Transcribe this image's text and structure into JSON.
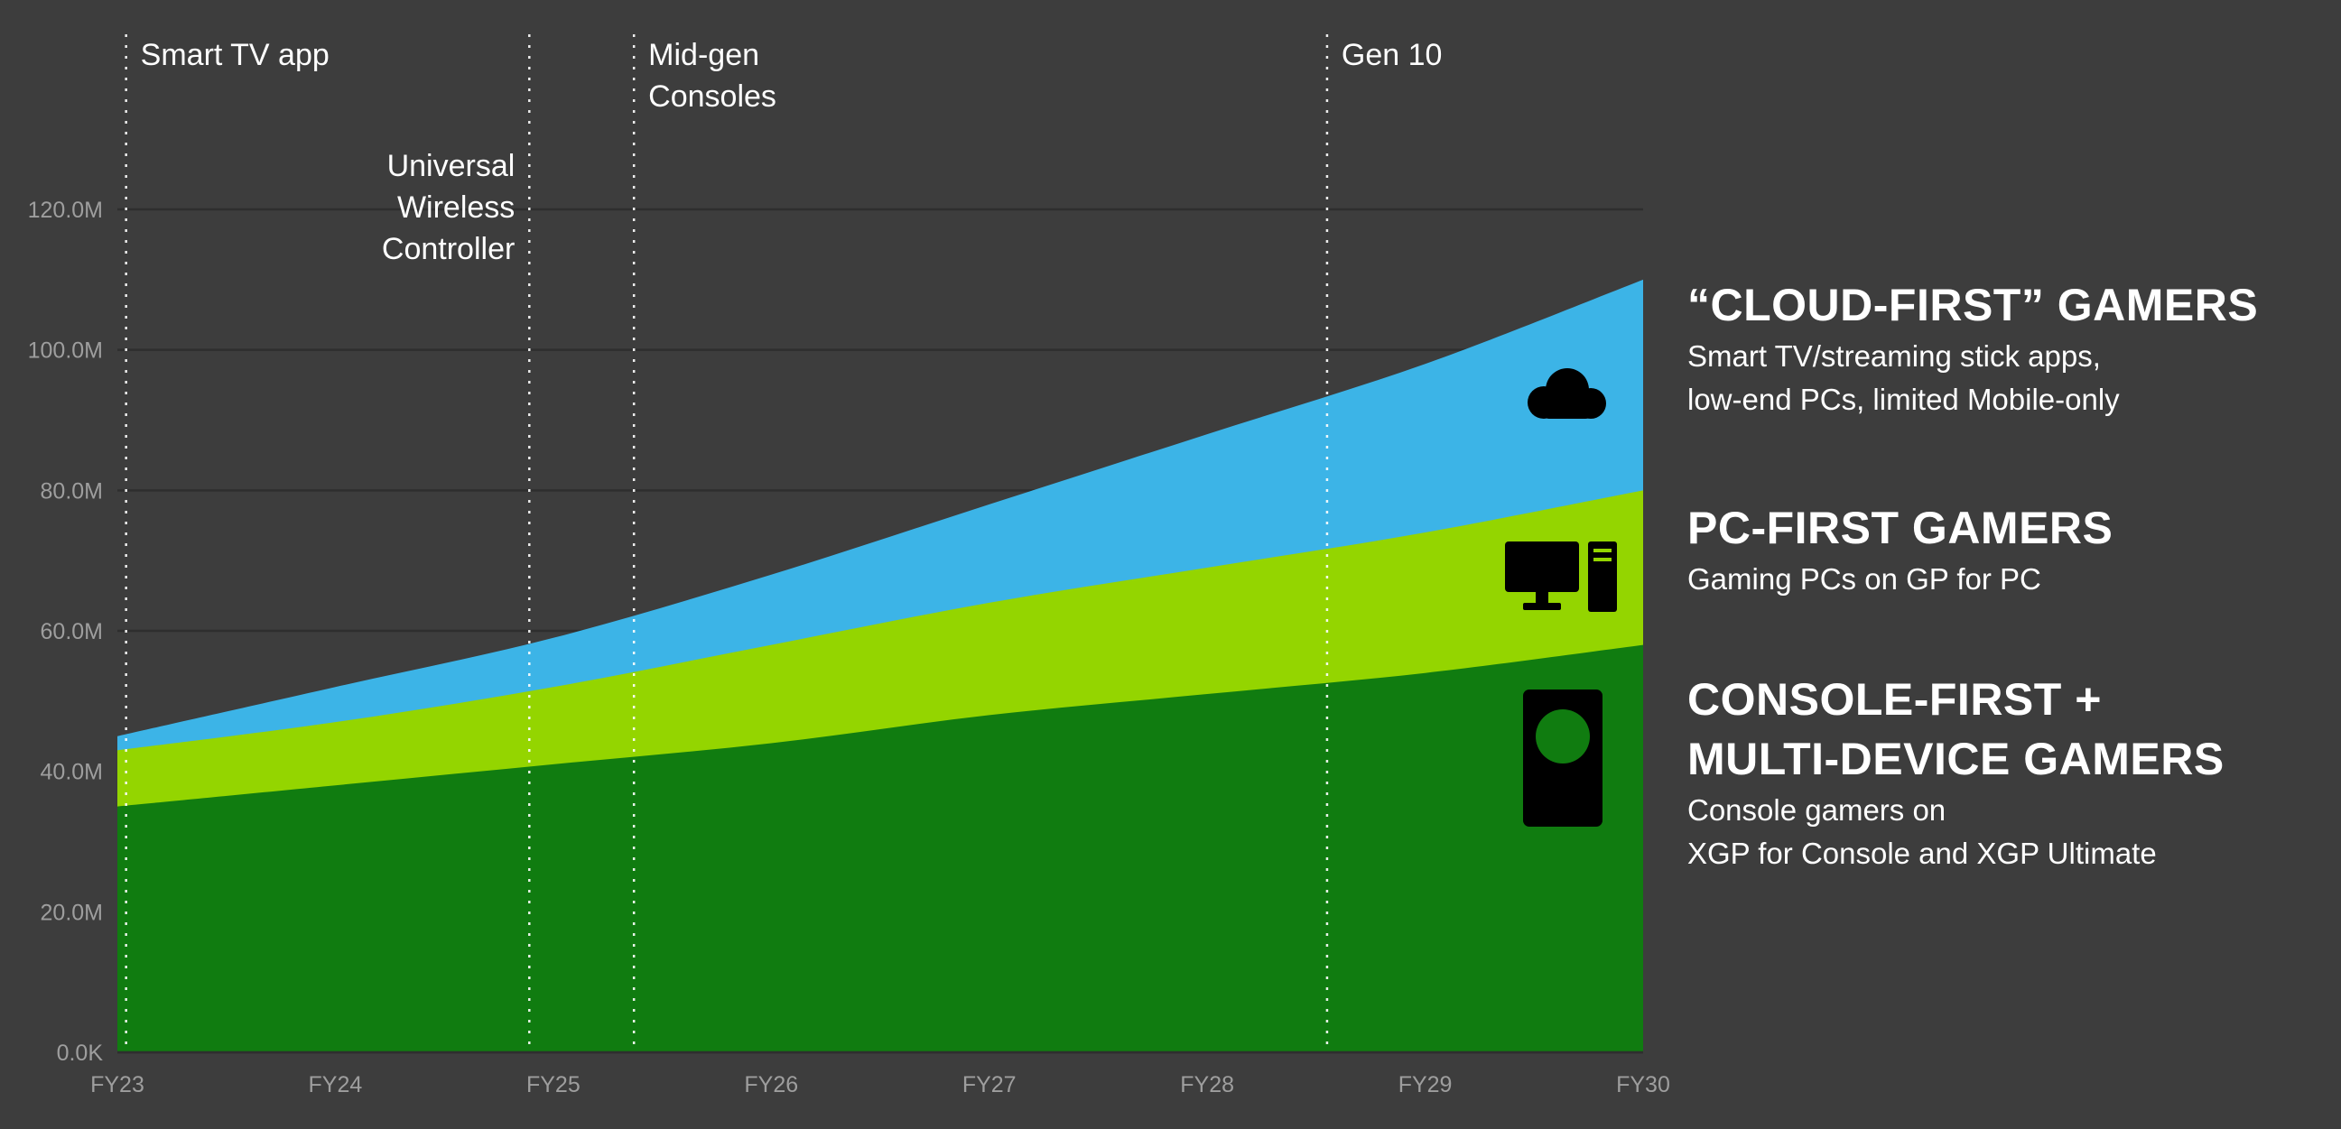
{
  "colors": {
    "background": "#3d3d3d",
    "console_green": "#107c10",
    "pc_lime": "#94d500",
    "cloud_blue": "#3cb4e7",
    "gridline": "#2e2e2e",
    "axis_text": "#9e9e9e",
    "annotation_line": "#ffffff",
    "annotation_text": "#ffffff",
    "icon": "#000000"
  },
  "chart_data": {
    "type": "area",
    "stacked": true,
    "title": "",
    "xlabel": "",
    "ylabel": "",
    "grid": "horizontal",
    "legend_position": "right",
    "x": [
      "FY23",
      "FY24",
      "FY25",
      "FY26",
      "FY27",
      "FY28",
      "FY29",
      "FY30"
    ],
    "series": [
      {
        "name": "Console-First + Multi-Device Gamers",
        "color_key": "console_green",
        "values": [
          35,
          38,
          41,
          44,
          48,
          51,
          54,
          58
        ]
      },
      {
        "name": "PC-First Gamers",
        "color_key": "pc_lime",
        "values": [
          8,
          9,
          11,
          14,
          16,
          18,
          20,
          22
        ]
      },
      {
        "name": "Cloud-First Gamers",
        "color_key": "cloud_blue",
        "values": [
          2,
          5,
          7,
          10,
          14,
          19,
          24,
          30
        ]
      }
    ],
    "ylim": [
      0,
      120
    ],
    "yticks": [
      {
        "value": 0,
        "label": "0.0K"
      },
      {
        "value": 20,
        "label": "20.0M"
      },
      {
        "value": 40,
        "label": "40.0M"
      },
      {
        "value": 60,
        "label": "60.0M"
      },
      {
        "value": 80,
        "label": "80.0M"
      },
      {
        "value": 100,
        "label": "100.0M"
      },
      {
        "value": 120,
        "label": "120.0M"
      }
    ],
    "annotations": [
      {
        "id": "smart-tv-app",
        "x": 0.04,
        "side": "right",
        "ty": 72,
        "lines": [
          "Smart TV app"
        ]
      },
      {
        "id": "universal-wireless-controller",
        "x": 1.89,
        "side": "left",
        "ty": 195,
        "lines": [
          "Universal",
          "Wireless",
          "Controller"
        ]
      },
      {
        "id": "mid-gen-consoles",
        "x": 2.37,
        "side": "right",
        "ty": 72,
        "lines": [
          "Mid-gen",
          "Consoles"
        ]
      },
      {
        "id": "gen-10",
        "x": 5.55,
        "side": "right",
        "ty": 72,
        "lines": [
          "Gen 10"
        ]
      }
    ]
  },
  "legend": {
    "items": [
      {
        "icon": "cloud-icon",
        "title_lines": [
          "“CLOUD-FIRST” GAMERS"
        ],
        "desc": [
          "Smart TV/streaming stick apps,",
          "low-end PCs, limited Mobile-only"
        ]
      },
      {
        "icon": "pc-icon",
        "title_lines": [
          "PC-FIRST GAMERS"
        ],
        "desc": [
          "Gaming PCs on GP for PC"
        ]
      },
      {
        "icon": "console-icon",
        "title_lines": [
          "CONSOLE-FIRST +",
          "MULTI-DEVICE GAMERS"
        ],
        "desc": [
          "Console gamers on",
          "XGP for Console and XGP Ultimate"
        ]
      }
    ]
  }
}
